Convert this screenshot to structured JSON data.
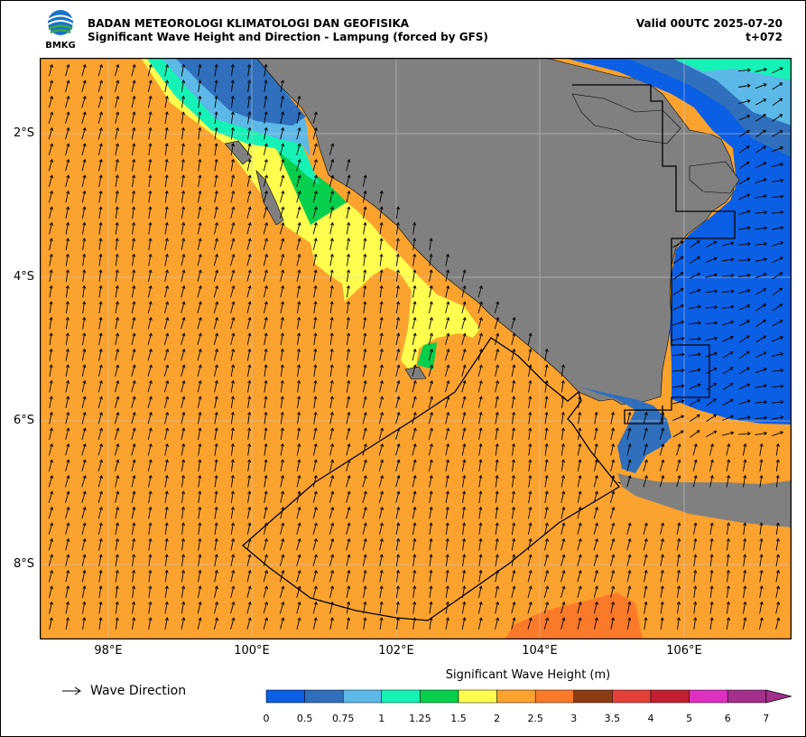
{
  "header": {
    "org_name": "BADAN METEOROLOGI KLIMATOLOGI DAN GEOFISIKA",
    "product_title": "Significant Wave Height and Direction - Lampung (forced by GFS)",
    "valid_time": "Valid 00UTC 2025-07-20",
    "lead_time": "t+072"
  },
  "logo": {
    "text": "BMKG"
  },
  "map": {
    "lat_labels": [
      "2°S",
      "4°S",
      "6°S",
      "8°S"
    ],
    "lon_labels": [
      "98°E",
      "100°E",
      "102°E",
      "104°E",
      "106°E"
    ],
    "land_color": "#808080",
    "sea_color_dominant": "#fba32e",
    "gridlines": true,
    "dominant_wave_direction": "north-northeast"
  },
  "legend": {
    "wave_direction_label": "Wave Direction"
  },
  "colorbar": {
    "title": "Significant Wave Height (m)",
    "ticks": [
      "0",
      "0.5",
      "0.75",
      "1",
      "1.25",
      "1.5",
      "2",
      "2.5",
      "3",
      "3.5",
      "4",
      "5",
      "6",
      "7"
    ],
    "colors": [
      "#0b5fe4",
      "#2f6fbc",
      "#5cb8e6",
      "#16f2b6",
      "#06cf4d",
      "#fffe4e",
      "#fba32e",
      "#fb7a2a",
      "#8b3e13",
      "#e2413a",
      "#c22030",
      "#de30c0",
      "#a4308b"
    ]
  }
}
